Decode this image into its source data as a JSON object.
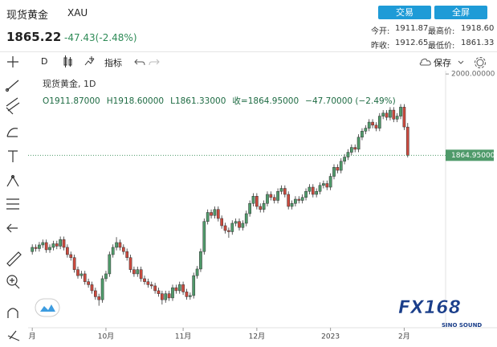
{
  "header": {
    "name": "现货黄金",
    "code": "XAU",
    "buttons": [
      "交易",
      "全屏"
    ],
    "price": "1865.22",
    "change": "-47.43(-2.48%)",
    "stats": [
      [
        "今开:",
        "1911.87",
        "最高价:",
        "1918.60"
      ],
      [
        "昨收:",
        "1912.65",
        "最低价:",
        "1861.33"
      ]
    ]
  },
  "toolbar": {
    "interval": "D",
    "indicators": "指标",
    "save": "保存"
  },
  "logo": {
    "text": "FX168",
    "sub": "SINO SOUND"
  },
  "chart_data": {
    "type": "candlestick",
    "legend_title": "现货黄金, 1D",
    "legend_items": [
      "O1911.87000",
      "H1918.60000",
      "L1861.33000",
      "收=1864.95000",
      "−47.70000 (−2.49%)"
    ],
    "up_color": "#4f9a6a",
    "down_color": "#cc4a3e",
    "grid": false,
    "ylim": [
      1578.5,
      2005.5
    ],
    "yticks": [
      {
        "value": 2000,
        "label": "2000.00000"
      }
    ],
    "last_price": {
      "value": 1864.95,
      "label": "1864.95000"
    },
    "categories": [
      "月",
      null,
      null,
      null,
      null,
      null,
      null,
      null,
      null,
      null,
      null,
      null,
      null,
      null,
      null,
      null,
      null,
      null,
      null,
      null,
      null,
      "10月",
      null,
      null,
      null,
      null,
      null,
      null,
      null,
      null,
      null,
      null,
      null,
      null,
      null,
      null,
      null,
      null,
      null,
      null,
      null,
      null,
      null,
      "11月",
      null,
      null,
      null,
      null,
      null,
      null,
      null,
      null,
      null,
      null,
      null,
      null,
      null,
      null,
      null,
      null,
      null,
      null,
      null,
      null,
      "12月",
      null,
      null,
      null,
      null,
      null,
      null,
      null,
      null,
      null,
      null,
      null,
      null,
      null,
      null,
      null,
      null,
      null,
      null,
      null,
      null,
      "2023",
      null,
      null,
      null,
      null,
      null,
      null,
      null,
      null,
      null,
      null,
      null,
      null,
      null,
      null,
      null,
      null,
      null,
      null,
      null,
      null,
      "2月",
      null
    ],
    "open": [
      1705,
      1712,
      1710,
      1716,
      1720,
      1708,
      1712,
      1718,
      1714,
      1725,
      1712,
      1700,
      1695,
      1675,
      1665,
      1668,
      1655,
      1650,
      1640,
      1630,
      1625,
      1660,
      1668,
      1700,
      1712,
      1720,
      1712,
      1705,
      1695,
      1675,
      1668,
      1675,
      1660,
      1655,
      1650,
      1648,
      1640,
      1635,
      1625,
      1635,
      1628,
      1645,
      1640,
      1650,
      1638,
      1630,
      1632,
      1665,
      1676,
      1705,
      1755,
      1770,
      1765,
      1775,
      1760,
      1748,
      1740,
      1738,
      1752,
      1755,
      1745,
      1752,
      1768,
      1785,
      1797,
      1780,
      1775,
      1785,
      1800,
      1795,
      1790,
      1805,
      1810,
      1800,
      1780,
      1785,
      1792,
      1790,
      1795,
      1805,
      1812,
      1800,
      1805,
      1815,
      1818,
      1812,
      1830,
      1845,
      1840,
      1855,
      1862,
      1870,
      1878,
      1875,
      1895,
      1905,
      1910,
      1920,
      1915,
      1910,
      1930,
      1935,
      1928,
      1940,
      1925,
      1930,
      1945,
      1911.87
    ],
    "high": [
      1717,
      1717,
      1721,
      1725,
      1725,
      1717,
      1723,
      1723,
      1730,
      1730,
      1717,
      1705,
      1700,
      1680,
      1673,
      1673,
      1660,
      1655,
      1645,
      1635,
      1665,
      1673,
      1705,
      1717,
      1729,
      1725,
      1717,
      1710,
      1700,
      1680,
      1680,
      1680,
      1665,
      1660,
      1655,
      1653,
      1645,
      1640,
      1640,
      1640,
      1650,
      1650,
      1655,
      1655,
      1643,
      1637,
      1670,
      1681,
      1710,
      1760,
      1775,
      1775,
      1780,
      1780,
      1765,
      1753,
      1745,
      1757,
      1760,
      1760,
      1757,
      1773,
      1790,
      1802,
      1802,
      1785,
      1790,
      1805,
      1805,
      1800,
      1810,
      1815,
      1815,
      1805,
      1790,
      1797,
      1797,
      1800,
      1810,
      1817,
      1817,
      1810,
      1820,
      1823,
      1823,
      1835,
      1850,
      1850,
      1860,
      1867,
      1875,
      1883,
      1883,
      1900,
      1910,
      1915,
      1925,
      1925,
      1920,
      1935,
      1940,
      1940,
      1945,
      1945,
      1935,
      1950,
      1950,
      1918.6
    ],
    "low": [
      1700,
      1705,
      1705,
      1711,
      1703,
      1703,
      1707,
      1709,
      1709,
      1707,
      1695,
      1690,
      1670,
      1660,
      1660,
      1650,
      1645,
      1635,
      1625,
      1615,
      1620,
      1655,
      1663,
      1695,
      1707,
      1707,
      1700,
      1690,
      1670,
      1663,
      1663,
      1655,
      1650,
      1645,
      1643,
      1635,
      1630,
      1617,
      1620,
      1623,
      1623,
      1635,
      1635,
      1633,
      1625,
      1625,
      1627,
      1660,
      1671,
      1700,
      1750,
      1760,
      1760,
      1755,
      1743,
      1735,
      1728,
      1733,
      1747,
      1740,
      1740,
      1747,
      1763,
      1780,
      1775,
      1770,
      1770,
      1780,
      1790,
      1785,
      1785,
      1800,
      1795,
      1775,
      1775,
      1780,
      1785,
      1785,
      1790,
      1800,
      1795,
      1795,
      1800,
      1810,
      1807,
      1807,
      1825,
      1835,
      1835,
      1850,
      1857,
      1865,
      1870,
      1870,
      1890,
      1900,
      1905,
      1910,
      1905,
      1905,
      1925,
      1923,
      1923,
      1920,
      1920,
      1925,
      1907,
      1861.33
    ],
    "close": [
      1712,
      1710,
      1716,
      1720,
      1708,
      1712,
      1718,
      1714,
      1725,
      1712,
      1700,
      1695,
      1675,
      1665,
      1668,
      1655,
      1650,
      1640,
      1630,
      1625,
      1660,
      1668,
      1700,
      1712,
      1720,
      1712,
      1705,
      1695,
      1675,
      1668,
      1675,
      1660,
      1655,
      1650,
      1648,
      1640,
      1635,
      1625,
      1635,
      1628,
      1645,
      1640,
      1650,
      1638,
      1630,
      1632,
      1665,
      1676,
      1705,
      1755,
      1770,
      1765,
      1775,
      1760,
      1748,
      1740,
      1738,
      1752,
      1755,
      1745,
      1752,
      1768,
      1785,
      1797,
      1780,
      1775,
      1785,
      1800,
      1795,
      1790,
      1805,
      1810,
      1800,
      1780,
      1785,
      1792,
      1790,
      1795,
      1805,
      1812,
      1800,
      1805,
      1815,
      1818,
      1812,
      1830,
      1845,
      1840,
      1855,
      1862,
      1870,
      1878,
      1875,
      1895,
      1905,
      1910,
      1920,
      1915,
      1910,
      1930,
      1935,
      1928,
      1940,
      1925,
      1930,
      1945,
      1912,
      1864.95
    ]
  }
}
